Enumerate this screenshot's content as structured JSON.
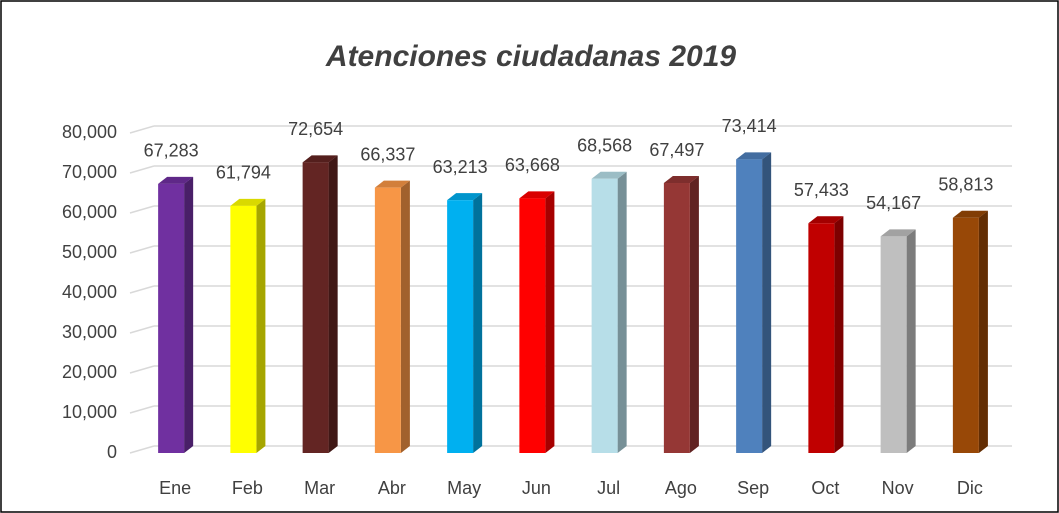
{
  "chart_data": {
    "type": "bar",
    "title": "Atenciones ciudadanas 2019",
    "categories": [
      "Ene",
      "Feb",
      "Mar",
      "Abr",
      "May",
      "Jun",
      "Jul",
      "Ago",
      "Sep",
      "Oct",
      "Nov",
      "Dic"
    ],
    "values": [
      67283,
      61794,
      72654,
      66337,
      63213,
      63668,
      68568,
      67497,
      73414,
      57433,
      54167,
      58813
    ],
    "value_labels": [
      "67,283",
      "61,794",
      "72,654",
      "66,337",
      "63,213",
      "63,668",
      "68,568",
      "67,497",
      "73,414",
      "57,433",
      "54,167",
      "58,813"
    ],
    "colors": [
      "#7030a0",
      "#ffff00",
      "#632523",
      "#f79646",
      "#00b0f0",
      "#ff0000",
      "#b7dee8",
      "#953735",
      "#4f81bd",
      "#c00000",
      "#bfbfbf",
      "#984807"
    ],
    "ylim": [
      0,
      80000
    ],
    "yticks": [
      0,
      {
        "value": 10000,
        "label": "10,000"
      },
      {
        "value": 20000,
        "label": "20,000"
      },
      {
        "value": 30000,
        "label": "30,000"
      },
      {
        "value": 40000,
        "label": "40,000"
      },
      {
        "value": 50000,
        "label": "50,000"
      },
      {
        "value": 60000,
        "label": "60,000"
      },
      {
        "value": 70000,
        "label": "70,000"
      },
      {
        "value": 80000,
        "label": "80,000"
      }
    ],
    "grid": true
  }
}
